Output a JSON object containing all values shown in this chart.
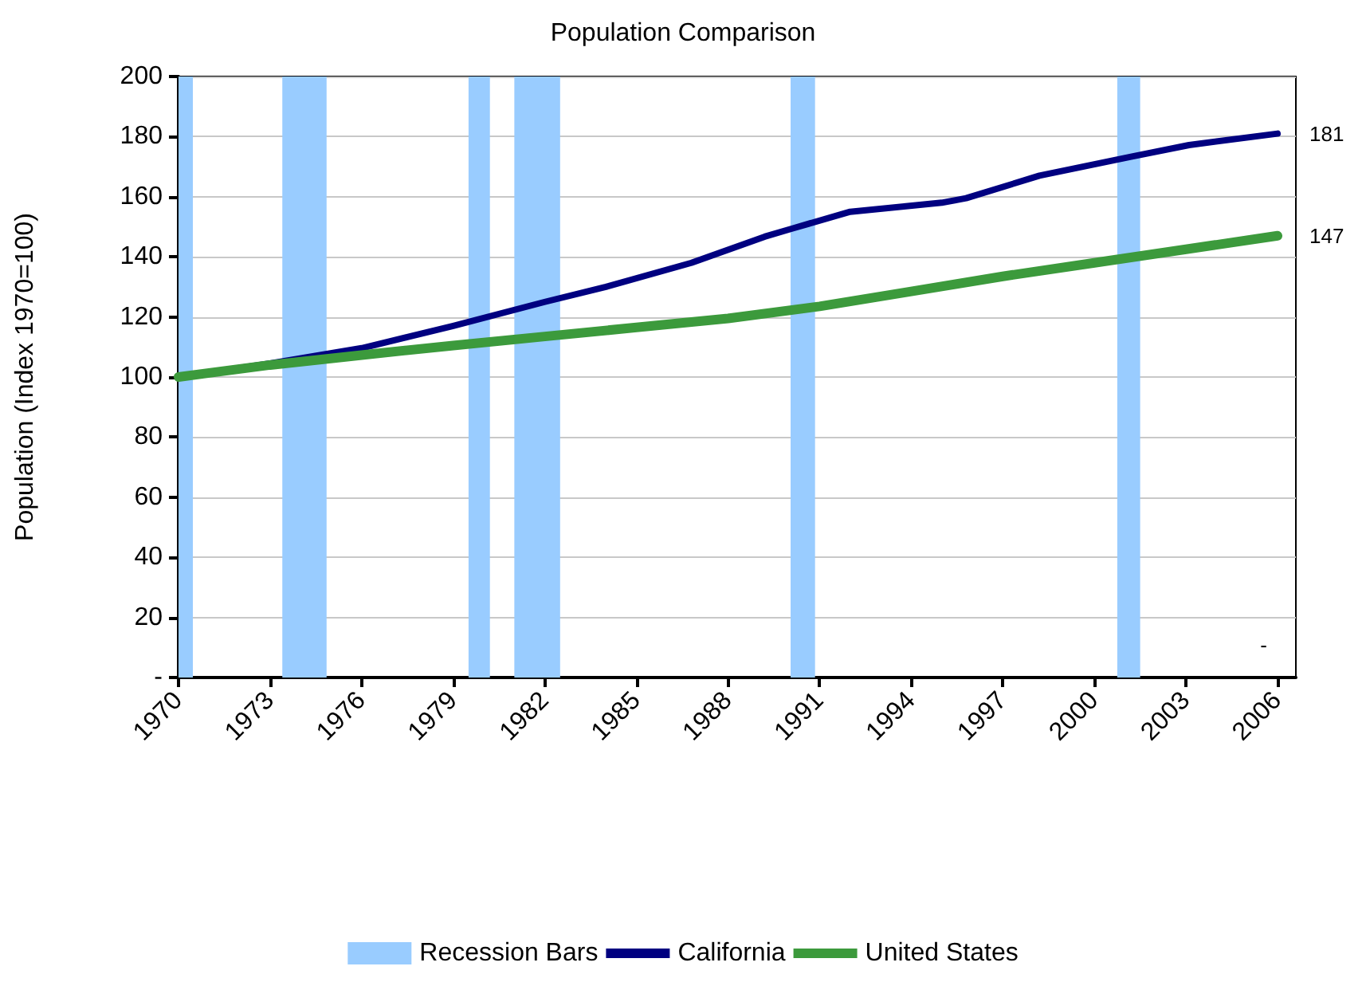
{
  "chart_data": {
    "type": "line",
    "title": "Population Comparison",
    "ylabel": "Population (Index 1970=100)",
    "x": [
      1970,
      1973,
      1976,
      1979,
      1982,
      1984,
      1986.8,
      1989.2,
      1990.1,
      1992,
      1995,
      1995.8,
      1998.2,
      2001.2,
      2003.1,
      2006
    ],
    "xlim": [
      1970,
      2006.6
    ],
    "xticks": [
      1970,
      1973,
      1976,
      1979,
      1982,
      1985,
      1988,
      1991,
      1994,
      1997,
      2000,
      2003,
      2006
    ],
    "ylim": [
      0,
      200
    ],
    "yticks": [
      {
        "value": 0,
        "label": "-"
      },
      20,
      40,
      60,
      80,
      100,
      120,
      140,
      160,
      180,
      200
    ],
    "grid": "y",
    "legend": "bottom",
    "marker": "none",
    "line_style": "solid",
    "series": [
      {
        "name": "California",
        "color": "#000080",
        "values": [
          100,
          104.5,
          109.6,
          117,
          125,
          130,
          138,
          146.7,
          149.4,
          155,
          158,
          159.5,
          167,
          173.3,
          177.2,
          181
        ],
        "value_labels": [
          null,
          null,
          null,
          null,
          null,
          null,
          null,
          null,
          null,
          null,
          null,
          null,
          null,
          null,
          null,
          "181"
        ]
      },
      {
        "name": "United States",
        "color": "#3c9a3c",
        "x": [
          1970,
          1973,
          1976,
          1979,
          1982,
          1985,
          1988,
          1991,
          1994,
          1997,
          2000,
          2003,
          2006
        ],
        "values": [
          100,
          104,
          107.3,
          110.5,
          113.5,
          116.5,
          119.5,
          123.5,
          128.5,
          133.5,
          138,
          142.5,
          147
        ],
        "value_labels": [
          null,
          null,
          null,
          null,
          null,
          null,
          null,
          null,
          null,
          null,
          null,
          null,
          "147"
        ]
      }
    ],
    "bands": [
      {
        "axis": "x",
        "from": 1970,
        "to": 1970.47,
        "label": "Recession Bars",
        "color": "#99ccff"
      },
      {
        "axis": "x",
        "from": 1973.4,
        "to": 1974.85,
        "color": "#99ccff"
      },
      {
        "axis": "x",
        "from": 1979.5,
        "to": 1980.2,
        "color": "#99ccff"
      },
      {
        "axis": "x",
        "from": 1981,
        "to": 1982.5,
        "color": "#99ccff"
      },
      {
        "axis": "x",
        "from": 1990.05,
        "to": 1990.85,
        "color": "#99ccff"
      },
      {
        "axis": "x",
        "from": 2000.75,
        "to": 2001.5,
        "color": "#99ccff"
      }
    ],
    "annotations": [
      "-"
    ]
  }
}
